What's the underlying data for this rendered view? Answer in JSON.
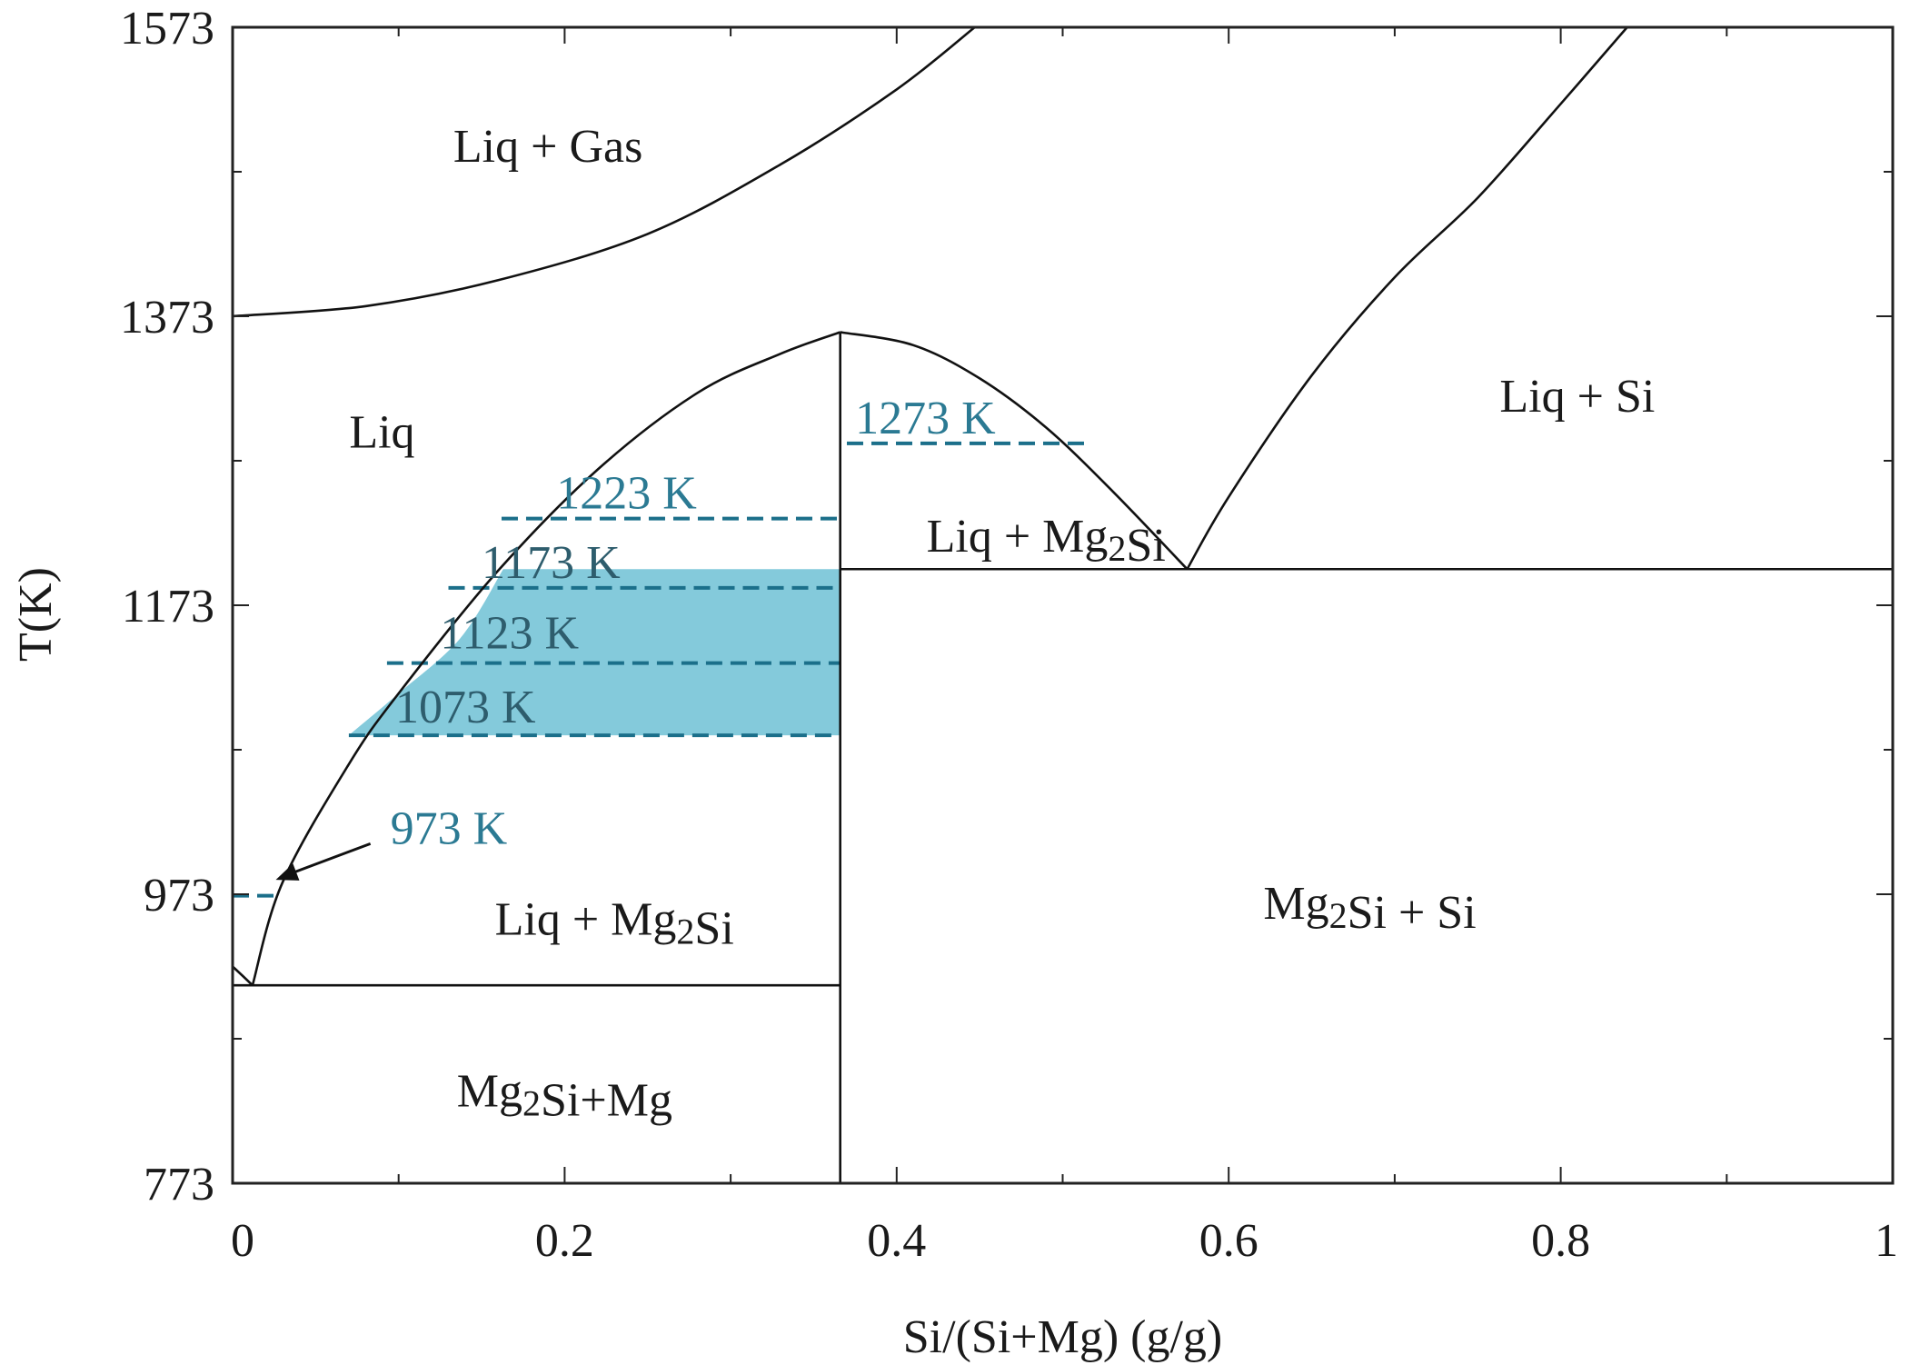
{
  "chart_data": {
    "type": "phase-diagram",
    "title": "",
    "xlabel": "Si/(Si+Mg) (g/g)",
    "ylabel": "T(K)",
    "xlim": [
      0,
      1
    ],
    "ylim": [
      773,
      1573
    ],
    "x_ticks": [
      "0",
      "0.2",
      "0.4",
      "0.6",
      "0.8",
      "1"
    ],
    "y_ticks": [
      "773",
      "973",
      "1173",
      "1373",
      "1573"
    ],
    "colors": {
      "frame": "#222222",
      "curve": "#111111",
      "shade": "#84cadb",
      "dash": "#1b6f8a",
      "highlight_label": "#2b7a93"
    },
    "boundaries": {
      "gas_liquidus": [
        [
          0,
          1373
        ],
        [
          0.08,
          1380
        ],
        [
          0.16,
          1398
        ],
        [
          0.25,
          1430
        ],
        [
          0.33,
          1478
        ],
        [
          0.4,
          1530
        ],
        [
          0.447,
          1573
        ]
      ],
      "mg2si_liquidus_left": [
        [
          0.012,
          910
        ],
        [
          0.03,
          981
        ],
        [
          0.07,
          1063
        ],
        [
          0.1,
          1112
        ],
        [
          0.16,
          1197
        ],
        [
          0.22,
          1267
        ],
        [
          0.28,
          1320
        ],
        [
          0.33,
          1347
        ],
        [
          0.366,
          1362
        ]
      ],
      "mg2si_liquidus_right": [
        [
          0.366,
          1362
        ],
        [
          0.41,
          1353
        ],
        [
          0.45,
          1330
        ],
        [
          0.49,
          1296
        ],
        [
          0.53,
          1252
        ],
        [
          0.575,
          1198
        ]
      ],
      "si_liquidus": [
        [
          0.575,
          1198
        ],
        [
          0.6,
          1248
        ],
        [
          0.65,
          1332
        ],
        [
          0.7,
          1400
        ],
        [
          0.75,
          1455
        ],
        [
          0.8,
          1520
        ],
        [
          0.84,
          1573
        ]
      ],
      "mg_liquidus": [
        [
          0,
          923
        ],
        [
          0.012,
          910
        ]
      ],
      "mg_side_eutectic": {
        "x": [
          0,
          0.366
        ],
        "t": 910
      },
      "si_side_eutectic": {
        "x": [
          0.366,
          1
        ],
        "t": 1198
      },
      "mg2si_line": {
        "x": 0.366,
        "t": [
          773,
          1362
        ]
      }
    },
    "shaded_region": {
      "t": [
        1083,
        1198
      ],
      "x_max": 0.366,
      "left_edge": [
        [
          0.07,
          1083
        ],
        [
          0.1,
          1112
        ],
        [
          0.137,
          1150
        ],
        [
          0.163,
          1198
        ]
      ]
    },
    "isotherms": [
      {
        "label": "1073 K",
        "t": 1083,
        "x": [
          0.07,
          0.366
        ],
        "label_x": 0.098,
        "label_t": 1092,
        "on_shade": true
      },
      {
        "label": "1123 K",
        "t": 1133,
        "x": [
          0.093,
          0.366
        ],
        "label_x": 0.125,
        "label_t": 1143,
        "on_shade": true
      },
      {
        "label": "1173 K",
        "t": 1185,
        "x": [
          0.13,
          0.366
        ],
        "label_x": 0.15,
        "label_t": 1192,
        "on_shade": true
      },
      {
        "label": "1223 K",
        "t": 1233,
        "x": [
          0.162,
          0.366
        ],
        "label_x": 0.195,
        "label_t": 1240,
        "on_shade": false
      },
      {
        "label": "1273 K",
        "t": 1285,
        "x": [
          0.37,
          0.515
        ],
        "label_x": 0.375,
        "label_t": 1292,
        "on_shade": false
      }
    ],
    "annotation_973": {
      "label": "973 K",
      "t": 972,
      "x": [
        0.0,
        0.028
      ],
      "label_x": 0.095,
      "label_t": 1008,
      "arrow_from": [
        0.083,
        1008
      ],
      "arrow_to": [
        0.026,
        983
      ]
    },
    "regions": [
      {
        "label": "Liq + Gas",
        "x": 0.19,
        "t": 1480
      },
      {
        "label": "Liq",
        "x": 0.09,
        "t": 1282
      },
      {
        "label": "Liq + Si",
        "x": 0.81,
        "t": 1307
      },
      {
        "label": "Liq + Mg2Si",
        "x": 0.49,
        "t": 1210
      },
      {
        "label": "Liq + Mg2Si",
        "x": 0.23,
        "t": 945
      },
      {
        "label": "Mg2Si + Si",
        "x": 0.685,
        "t": 956
      },
      {
        "label": "Mg2Si+Mg",
        "x": 0.2,
        "t": 826
      }
    ]
  }
}
